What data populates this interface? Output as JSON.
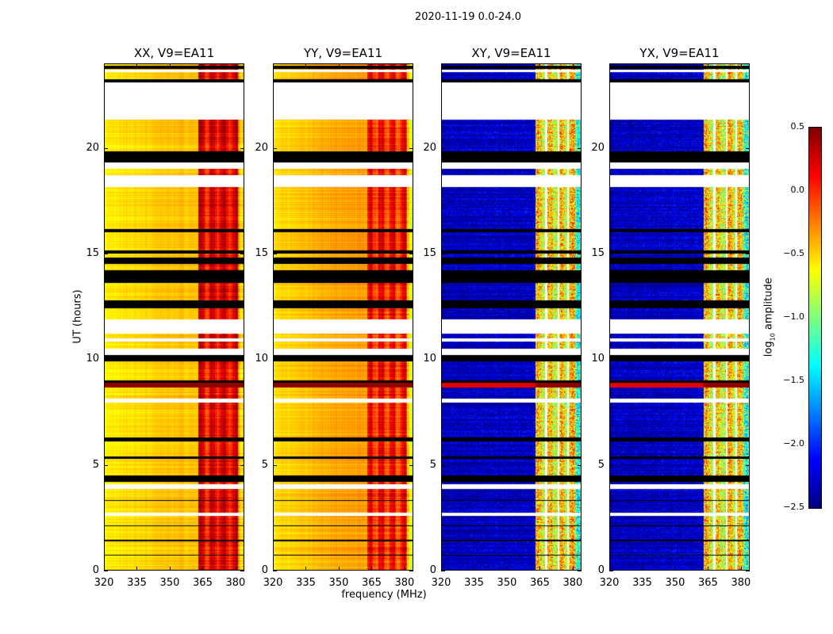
{
  "chart_data": {
    "type": "heatmap",
    "suptitle": "2020-11-19 0.0-24.0",
    "xlabel": "frequency (MHz)",
    "ylabel": "UT (hours)",
    "xlim": [
      320,
      384
    ],
    "ylim": [
      0,
      24
    ],
    "xticks": [
      "320",
      "335",
      "350",
      "365",
      "380"
    ],
    "yticks": [
      "0",
      "5",
      "10",
      "15",
      "20"
    ],
    "xtick_values": [
      320,
      335,
      350,
      365,
      380
    ],
    "ytick_values": [
      0,
      5,
      10,
      15,
      20
    ],
    "colorbar": {
      "label": "log10 amplitude",
      "label_main": "log",
      "label_sub": "10",
      "label_rest": " amplitude",
      "range": [
        -2.5,
        0.5
      ],
      "ticks": [
        "0.5",
        "0.0",
        "−0.5",
        "−1.0",
        "−1.5",
        "−2.0",
        "−2.5"
      ],
      "tick_values": [
        0.5,
        0.0,
        -0.5,
        -1.0,
        -1.5,
        -2.0,
        -2.5
      ],
      "colormap": "jet"
    },
    "white_gaps_hours": [
      [
        21.35,
        23.1
      ],
      [
        19.0,
        19.3
      ],
      [
        18.15,
        18.7
      ],
      [
        11.2,
        11.9
      ],
      [
        10.85,
        11.0
      ],
      [
        10.2,
        10.5
      ],
      [
        7.95,
        8.15
      ],
      [
        3.85,
        4.1
      ],
      [
        2.6,
        2.75
      ],
      [
        23.6,
        23.7
      ]
    ],
    "black_flag_hours": [
      [
        23.1,
        23.25
      ],
      [
        19.3,
        19.85
      ],
      [
        12.4,
        12.8
      ],
      [
        13.6,
        14.2
      ],
      [
        14.5,
        14.8
      ],
      [
        9.9,
        10.2
      ],
      [
        8.9,
        9.0
      ],
      [
        6.1,
        6.3
      ],
      [
        4.2,
        4.5
      ],
      [
        23.75,
        23.9
      ],
      [
        16.0,
        16.15
      ],
      [
        15.0,
        15.15
      ],
      [
        5.3,
        5.4
      ],
      [
        1.4,
        1.45
      ],
      [
        2.1,
        2.15
      ],
      [
        3.3,
        3.35
      ],
      [
        0.7,
        0.75
      ]
    ],
    "rfi_hot_hours": [
      [
        8.65,
        8.9
      ]
    ],
    "panels": [
      {
        "title": "XX, V9=EA11",
        "baseline": -0.6,
        "mid": -0.45,
        "band_level": 0.15,
        "kind": "auto"
      },
      {
        "title": "YY, V9=EA11",
        "baseline": -0.55,
        "mid": -0.35,
        "band_level": 0.05,
        "kind": "auto"
      },
      {
        "title": "XY, V9=EA11",
        "baseline": -2.35,
        "mid": -2.3,
        "band_level": -0.6,
        "kind": "cross"
      },
      {
        "title": "YX, V9=EA11",
        "baseline": -2.35,
        "mid": -2.3,
        "band_level": -0.6,
        "kind": "cross"
      }
    ],
    "band_start_mhz": 363,
    "cross_band_gaps_mhz": [
      [
        367.5,
        368.3
      ],
      [
        373,
        373.8
      ],
      [
        377.5,
        378.3
      ]
    ]
  }
}
